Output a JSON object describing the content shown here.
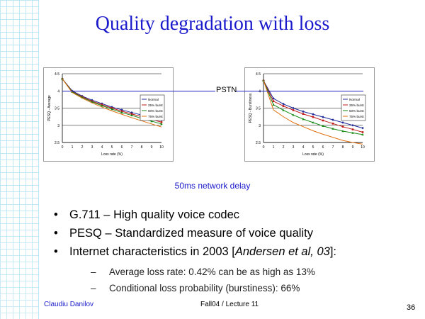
{
  "slide": {
    "title": "Quality degradation with loss",
    "pstn_label": "PSTN",
    "subcaption": "50ms network delay",
    "bullets": [
      {
        "text": "G.711 – High quality voice codec"
      },
      {
        "text": "PESQ – Standardized measure of voice quality"
      },
      {
        "pre": "Internet characteristics in 2003 [",
        "italic": "Andersen et al, 03",
        "post": "]:"
      }
    ],
    "subbullets": [
      "Average loss rate: 0.42% can be as high as 13%",
      "Conditional loss probability (burstiness): 66%"
    ],
    "footer": {
      "author": "Claudiu Danilov",
      "lecture": "Fall04 / Lecture 11",
      "page": "36"
    }
  },
  "colors": {
    "title": "#1a1acc",
    "pstn_line": "#2020c0",
    "normal": "#1f2a9a",
    "burst25": "#c01818",
    "burst50": "#148a14",
    "burst75": "#e07010"
  },
  "chart_data": [
    {
      "type": "line",
      "xlabel": "Loss rate (%)",
      "ylabel": "PESQ - Average",
      "x": [
        0,
        1,
        2,
        3,
        4,
        5,
        6,
        7,
        8,
        9,
        10
      ],
      "xlim": [
        0,
        10
      ],
      "ylim": [
        2.5,
        4.5
      ],
      "yticks": [
        "2.5",
        "3",
        "3.5",
        "4",
        "4.5"
      ],
      "reference_line": {
        "label": "PSTN",
        "y": 4.0
      },
      "legend_position": "right",
      "series": [
        {
          "name": "Normal",
          "color": "#1f2a9a",
          "marker": "diamond",
          "values": [
            4.35,
            4.0,
            3.85,
            3.73,
            3.63,
            3.53,
            3.45,
            3.37,
            3.3,
            3.22,
            3.15
          ]
        },
        {
          "name": "25% burst",
          "color": "#c01818",
          "marker": "square",
          "values": [
            4.35,
            3.98,
            3.83,
            3.7,
            3.6,
            3.5,
            3.41,
            3.33,
            3.25,
            3.17,
            3.09
          ]
        },
        {
          "name": "50% burst",
          "color": "#148a14",
          "marker": "triangle",
          "values": [
            4.35,
            3.97,
            3.81,
            3.68,
            3.57,
            3.47,
            3.37,
            3.29,
            3.2,
            3.12,
            3.04
          ]
        },
        {
          "name": "75% burst",
          "color": "#e07010",
          "marker": "none",
          "values": [
            4.35,
            3.95,
            3.79,
            3.65,
            3.53,
            3.42,
            3.32,
            3.22,
            3.13,
            3.04,
            2.95
          ]
        }
      ]
    },
    {
      "type": "line",
      "xlabel": "Loss rate (%)",
      "ylabel": "PESQ - Burstiness",
      "x": [
        0,
        1,
        2,
        3,
        4,
        5,
        6,
        7,
        8,
        9,
        10
      ],
      "xlim": [
        0,
        10
      ],
      "ylim": [
        2.5,
        4.5
      ],
      "yticks": [
        "2.5",
        "3",
        "3.5",
        "4",
        "4.5"
      ],
      "reference_line": {
        "label": "PSTN",
        "y": 4.0
      },
      "legend_position": "right",
      "series": [
        {
          "name": "Normal",
          "color": "#1f2a9a",
          "marker": "diamond",
          "values": [
            4.3,
            3.78,
            3.62,
            3.5,
            3.4,
            3.32,
            3.24,
            3.16,
            3.08,
            3.0,
            2.92
          ]
        },
        {
          "name": "25% burst",
          "color": "#c01818",
          "marker": "square",
          "values": [
            4.3,
            3.7,
            3.56,
            3.44,
            3.33,
            3.24,
            3.14,
            3.05,
            2.96,
            2.88,
            2.8
          ]
        },
        {
          "name": "50% burst",
          "color": "#148a14",
          "marker": "triangle",
          "values": [
            4.3,
            3.6,
            3.44,
            3.3,
            3.18,
            3.08,
            2.98,
            2.9,
            2.83,
            2.78,
            2.73
          ]
        },
        {
          "name": "75% burst",
          "color": "#e07010",
          "marker": "none",
          "values": [
            4.3,
            3.45,
            3.25,
            3.08,
            2.96,
            2.84,
            2.74,
            2.65,
            2.56,
            2.5,
            2.45
          ]
        }
      ]
    }
  ]
}
